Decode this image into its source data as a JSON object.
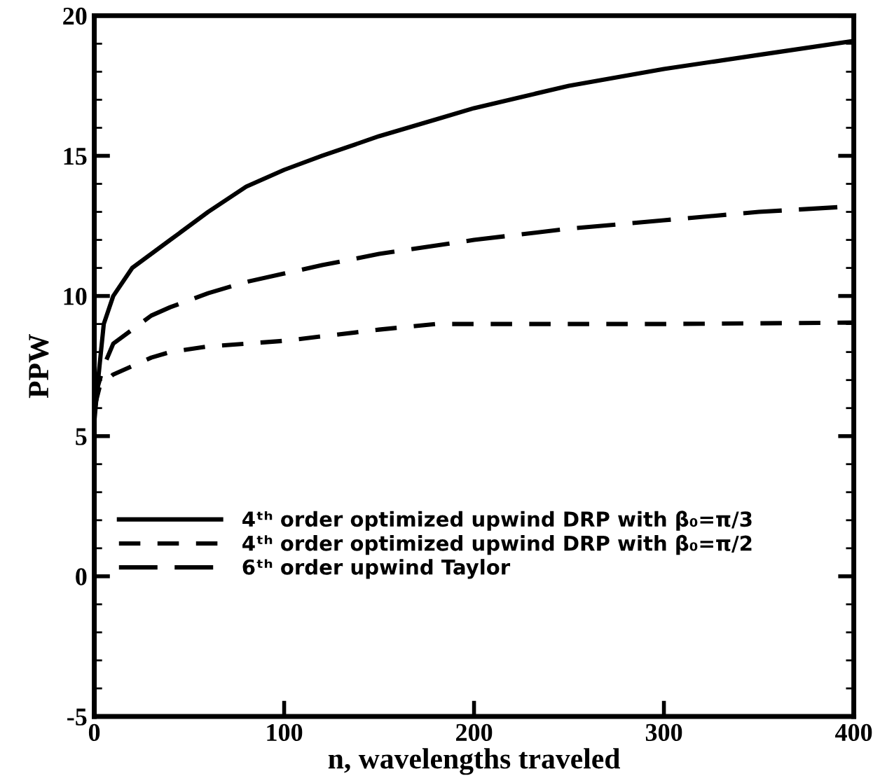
{
  "chart_data": {
    "type": "line",
    "xlabel": "n, wavelengths traveled",
    "ylabel": "PPW",
    "xlim": [
      0,
      400
    ],
    "xticks": [
      0,
      100,
      200,
      300,
      400
    ],
    "ylim": [
      -5,
      20
    ],
    "yticks": [
      -5,
      {
        "value": -4,
        "label": null
      },
      {
        "value": -3,
        "label": null
      },
      {
        "value": -2,
        "label": null
      },
      {
        "value": -1,
        "label": null
      },
      0,
      {
        "value": 1,
        "label": null
      },
      {
        "value": 2,
        "label": null
      },
      {
        "value": 3,
        "label": null
      },
      {
        "value": 4,
        "label": null
      },
      5,
      {
        "value": 6,
        "label": null
      },
      {
        "value": 7,
        "label": null
      },
      {
        "value": 8,
        "label": null
      },
      {
        "value": 9,
        "label": null
      },
      10,
      {
        "value": 11,
        "label": null
      },
      {
        "value": 12,
        "label": null
      },
      {
        "value": 13,
        "label": null
      },
      {
        "value": 14,
        "label": null
      },
      15,
      {
        "value": 16,
        "label": null
      },
      {
        "value": 17,
        "label": null
      },
      {
        "value": 18,
        "label": null
      },
      {
        "value": 19,
        "label": null
      },
      20
    ],
    "grid": false,
    "legend": "bottom",
    "marker": "none",
    "series": [
      {
        "name": "4ᵗʰ order optimized upwind DRP with β₀=π/3",
        "color": "#000000",
        "line_style": "solid",
        "x": [
          0,
          2,
          5,
          10,
          20,
          40,
          60,
          80,
          100,
          120,
          150,
          180,
          200,
          225,
          250,
          300,
          350,
          400
        ],
        "values": [
          5.5,
          7.0,
          9.0,
          10.0,
          11.0,
          12.0,
          13.0,
          13.9,
          14.5,
          15.0,
          15.7,
          16.3,
          16.7,
          17.1,
          17.5,
          18.1,
          18.6,
          19.1
        ]
      },
      {
        "name": "4ᵗʰ order optimized upwind DRP with β₀=π/2",
        "color": "#000000",
        "line_style": "dashed",
        "x": [
          0,
          3,
          10,
          20,
          30,
          40,
          60,
          100,
          150,
          180,
          250,
          300,
          400
        ],
        "values": [
          6.0,
          6.8,
          7.2,
          7.5,
          7.8,
          8.0,
          8.2,
          8.4,
          8.8,
          9.0,
          9.0,
          9.0,
          9.05
        ]
      },
      {
        "name": "6ᵗʰ order upwind Taylor",
        "color": "#000000",
        "line_style": "longdash",
        "x": [
          0,
          2,
          5,
          10,
          20,
          30,
          40,
          60,
          80,
          100,
          120,
          150,
          200,
          250,
          300,
          350,
          400
        ],
        "values": [
          5.8,
          6.8,
          7.5,
          8.3,
          8.8,
          9.3,
          9.6,
          10.1,
          10.5,
          10.8,
          11.1,
          11.5,
          12.0,
          12.4,
          12.7,
          13.0,
          13.2
        ]
      }
    ]
  }
}
